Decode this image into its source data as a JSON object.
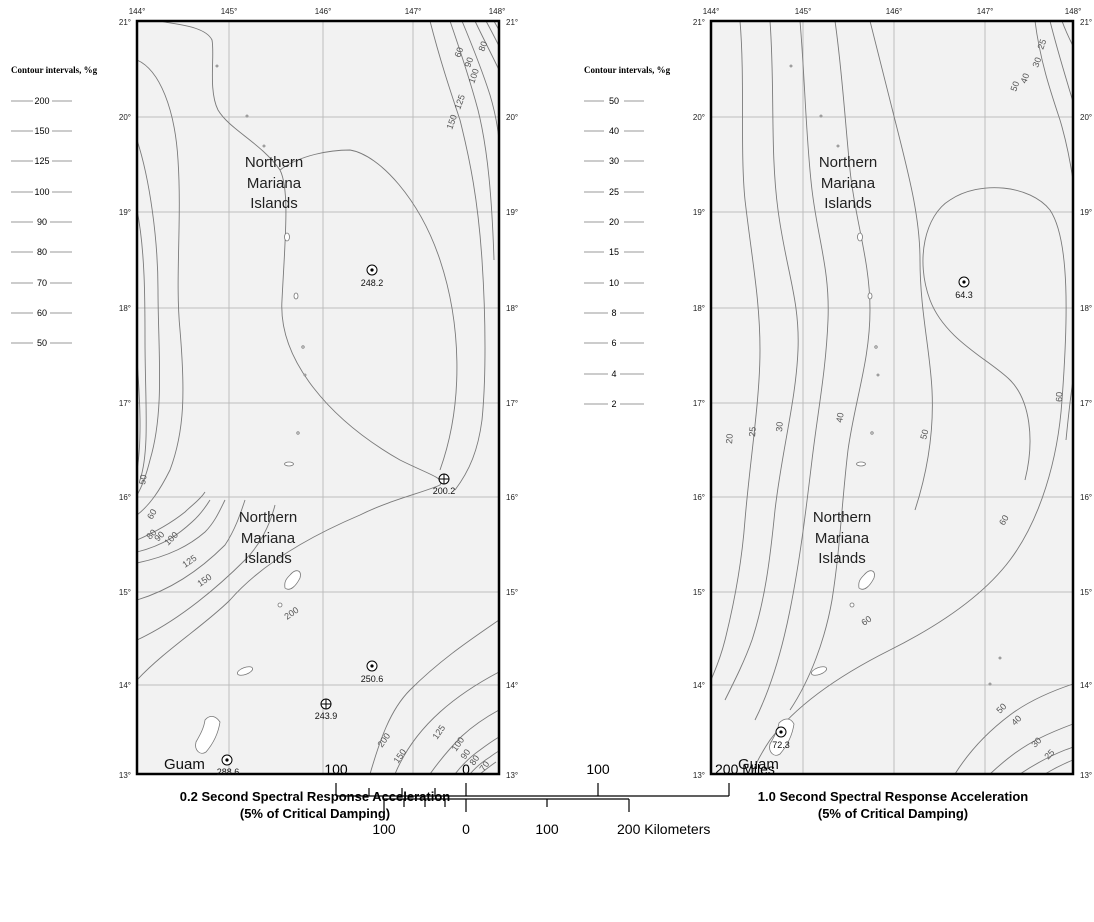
{
  "maps": [
    {
      "id": "ss",
      "longitude_ticks": [
        "144°",
        "145°",
        "146°",
        "147°",
        "148°"
      ],
      "latitude_ticks": [
        "21°",
        "20°",
        "19°",
        "18°",
        "17°",
        "16°",
        "15°",
        "14°",
        "13°"
      ],
      "legend_title": "Contour intervals, %g",
      "legend_values": [
        "200",
        "150",
        "125",
        "100",
        "90",
        "80",
        "70",
        "60",
        "50"
      ],
      "place_labels": [
        "Northern",
        "Mariana",
        "Islands"
      ],
      "place_labels_south": [
        "Northern",
        "Mariana",
        "Islands"
      ],
      "guam_label": "Guam",
      "sites": [
        "248.2",
        "200.2",
        "250.6",
        "243.9",
        "288.6"
      ],
      "contour_labels": [
        "60",
        "80",
        "90",
        "100",
        "125",
        "150",
        "50",
        "60",
        "80",
        "90",
        "100",
        "125",
        "150",
        "200",
        "200",
        "150",
        "125",
        "100",
        "90",
        "80",
        "70"
      ],
      "caption_line1": "0.2 Second Spectral Response Acceleration",
      "caption_line2": "(5% of Critical Damping)"
    },
    {
      "id": "s1",
      "longitude_ticks": [
        "144°",
        "145°",
        "146°",
        "147°",
        "148°"
      ],
      "latitude_ticks": [
        "21°",
        "20°",
        "19°",
        "18°",
        "17°",
        "16°",
        "15°",
        "14°",
        "13°"
      ],
      "legend_title": "Contour intervals, %g",
      "legend_values": [
        "50",
        "40",
        "30",
        "25",
        "20",
        "15",
        "10",
        "8",
        "6",
        "4",
        "2"
      ],
      "place_labels": [
        "Northern",
        "Mariana",
        "Islands"
      ],
      "place_labels_south": [
        "Northern",
        "Mariana",
        "Islands"
      ],
      "guam_label": "Guam",
      "sites": [
        "64.3",
        "72.3"
      ],
      "contour_labels": [
        "25",
        "30",
        "40",
        "50",
        "20",
        "25",
        "30",
        "40",
        "50",
        "60",
        "60",
        "60",
        "50",
        "40",
        "30",
        "25"
      ],
      "caption_line1": "1.0 Second Spectral Response Acceleration",
      "caption_line2": "(5% of Critical Damping)"
    }
  ],
  "scale_bar": {
    "miles_labels": [
      "100",
      "0",
      "100",
      "200 Miles"
    ],
    "km_labels": [
      "100",
      "0",
      "100",
      "200 Kilometers"
    ]
  },
  "colors": {
    "map_fill": "#f2f2f2",
    "grid": "#bdbdbd",
    "contour": "#7a7a7a",
    "frame": "#000000"
  }
}
